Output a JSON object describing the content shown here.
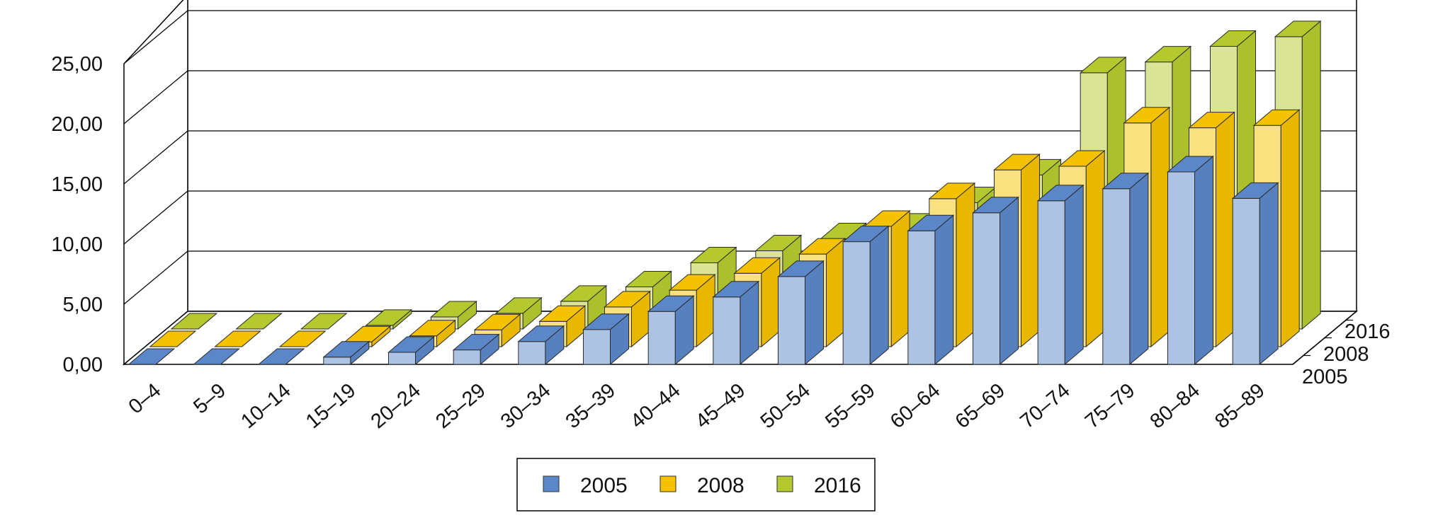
{
  "chart_data": {
    "type": "bar",
    "variant": "3d-grouped-depth",
    "title": "",
    "xlabel": "",
    "ylabel": "",
    "ylim": [
      0,
      25
    ],
    "y_ticks": [
      "0,00",
      "5,00",
      "10,00",
      "15,00",
      "20,00",
      "25,00"
    ],
    "y_tick_values": [
      0,
      5,
      10,
      15,
      20,
      25
    ],
    "grid": true,
    "legend_position": "bottom-center",
    "categories": [
      "0–4",
      "5–9",
      "10–14",
      "15–19",
      "20–24",
      "25–29",
      "30–34",
      "35–39",
      "40–44",
      "45–49",
      "50–54",
      "55–59",
      "60–64",
      "65–69",
      "70–74",
      "75–79",
      "80–84",
      "85–89"
    ],
    "series": [
      {
        "name": "2005",
        "color": "#5b87c8",
        "values": [
          0.0,
          0.0,
          0.0,
          0.6,
          1.0,
          1.2,
          1.9,
          2.9,
          4.4,
          5.6,
          7.3,
          10.2,
          11.1,
          12.6,
          13.6,
          14.6,
          16.0,
          13.8
        ]
      },
      {
        "name": "2008",
        "color": "#f4c200",
        "values": [
          0.0,
          0.0,
          0.0,
          0.4,
          0.9,
          1.4,
          2.1,
          3.3,
          4.7,
          6.1,
          7.7,
          10.0,
          12.3,
          14.7,
          15.0,
          18.6,
          18.2,
          18.4
        ]
      },
      {
        "name": "2016",
        "color": "#b5c92e",
        "values": [
          0.0,
          0.0,
          0.0,
          0.3,
          1.0,
          1.3,
          2.3,
          3.5,
          5.5,
          6.5,
          7.5,
          8.3,
          10.5,
          12.8,
          21.3,
          22.2,
          23.5,
          24.3
        ]
      }
    ],
    "depth_labels": [
      "2005",
      "2008",
      "2016"
    ]
  }
}
